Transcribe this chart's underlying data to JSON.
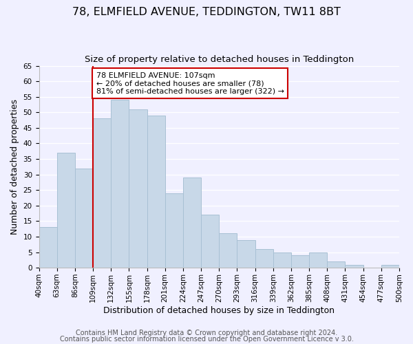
{
  "title": "78, ELMFIELD AVENUE, TEDDINGTON, TW11 8BT",
  "subtitle": "Size of property relative to detached houses in Teddington",
  "xlabel": "Distribution of detached houses by size in Teddington",
  "ylabel": "Number of detached properties",
  "footer_line1": "Contains HM Land Registry data © Crown copyright and database right 2024.",
  "footer_line2": "Contains public sector information licensed under the Open Government Licence v 3.0.",
  "bar_edges": [
    40,
    63,
    86,
    109,
    132,
    155,
    178,
    201,
    224,
    247,
    270,
    293,
    316,
    339,
    362,
    385,
    408,
    431,
    454,
    477,
    500
  ],
  "bar_heights": [
    13,
    37,
    32,
    48,
    54,
    51,
    49,
    24,
    29,
    17,
    11,
    9,
    6,
    5,
    4,
    5,
    2,
    1,
    0,
    1
  ],
  "bar_color": "#c8d8e8",
  "bar_edgecolor": "#a8c0d4",
  "vline_x": 109,
  "vline_color": "#cc0000",
  "annotation_text": "78 ELMFIELD AVENUE: 107sqm\n← 20% of detached houses are smaller (78)\n81% of semi-detached houses are larger (322) →",
  "annotation_box_edgecolor": "#cc0000",
  "annotation_box_facecolor": "#ffffff",
  "ylim": [
    0,
    65
  ],
  "yticks": [
    0,
    5,
    10,
    15,
    20,
    25,
    30,
    35,
    40,
    45,
    50,
    55,
    60,
    65
  ],
  "tick_labels": [
    "40sqm",
    "63sqm",
    "86sqm",
    "109sqm",
    "132sqm",
    "155sqm",
    "178sqm",
    "201sqm",
    "224sqm",
    "247sqm",
    "270sqm",
    "293sqm",
    "316sqm",
    "339sqm",
    "362sqm",
    "385sqm",
    "408sqm",
    "431sqm",
    "454sqm",
    "477sqm",
    "500sqm"
  ],
  "background_color": "#f0f0ff",
  "grid_color": "#ffffff",
  "title_fontsize": 11.5,
  "subtitle_fontsize": 9.5,
  "axis_label_fontsize": 9,
  "tick_fontsize": 7.5,
  "annotation_fontsize": 8,
  "footer_fontsize": 7
}
